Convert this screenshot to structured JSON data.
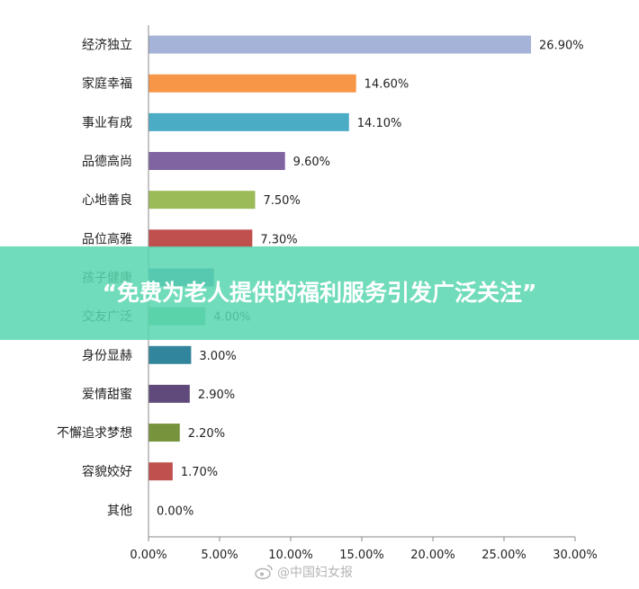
{
  "chart_data": {
    "type": "bar",
    "orientation": "horizontal",
    "categories": [
      "经济独立",
      "家庭幸福",
      "事业有成",
      "品德高尚",
      "心地善良",
      "品位高雅",
      "孩子健康",
      "交友广泛",
      "身份显赫",
      "爱情甜蜜",
      "不懈追求梦想",
      "容貌姣好",
      "其他"
    ],
    "values": [
      26.9,
      14.6,
      14.1,
      9.6,
      7.5,
      7.3,
      4.6,
      4.0,
      3.0,
      2.9,
      2.2,
      1.7,
      0.0
    ],
    "data_labels": [
      "26.90%",
      "14.60%",
      "14.10%",
      "9.60%",
      "7.50%",
      "7.30%",
      "",
      "4.00%",
      "3.00%",
      "2.90%",
      "2.20%",
      "1.70%",
      "0.00%"
    ],
    "colors": [
      "#A5B3D8",
      "#F79646",
      "#4BACC6",
      "#8064A2",
      "#9BBB59",
      "#C0504D",
      "#4F81BD",
      "#6FC08E",
      "#31859C",
      "#604A7B",
      "#77933C",
      "#C0504D",
      "#4F81BD"
    ],
    "xlim": [
      0,
      30
    ],
    "xticks": [
      "0.00%",
      "5.00%",
      "10.00%",
      "15.00%",
      "20.00%",
      "25.00%",
      "30.00%"
    ],
    "grid": false,
    "legend": "none"
  },
  "banner": {
    "text": "“免费为老人提供的福利服务引发广泛关注”"
  },
  "watermark": {
    "text": "@中国妇女报",
    "icon": "weibo-icon"
  }
}
